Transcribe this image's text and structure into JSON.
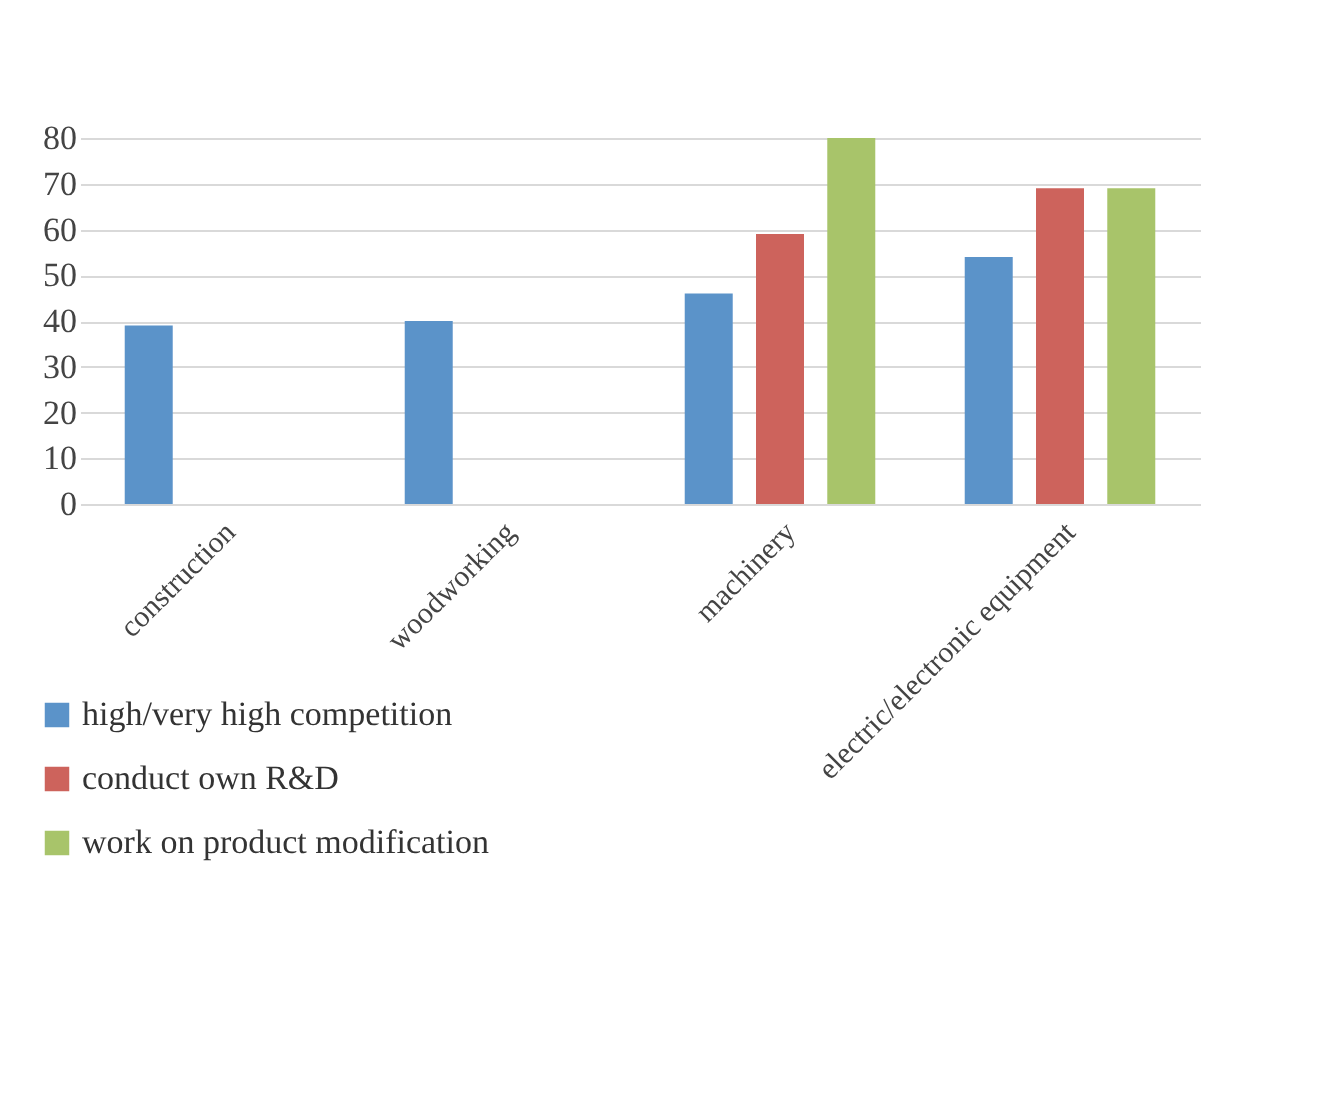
{
  "chart_data": {
    "type": "bar",
    "categories": [
      "construction",
      "woodworking",
      "machinery",
      "electric/electronic equipment"
    ],
    "series": [
      {
        "name": "high/very high competition",
        "color": "#5b93c9",
        "values": [
          39,
          40,
          46,
          54
        ]
      },
      {
        "name": "conduct own R&D",
        "color": "#cd635c",
        "values": [
          null,
          null,
          59,
          69
        ]
      },
      {
        "name": "work on product modification",
        "color": "#a8c46a",
        "values": [
          null,
          null,
          80,
          69
        ]
      }
    ],
    "ylim": [
      0,
      80
    ],
    "yticks": [
      0,
      10,
      20,
      30,
      40,
      50,
      60,
      70,
      80
    ],
    "grid": "y",
    "legend": "bottom"
  }
}
